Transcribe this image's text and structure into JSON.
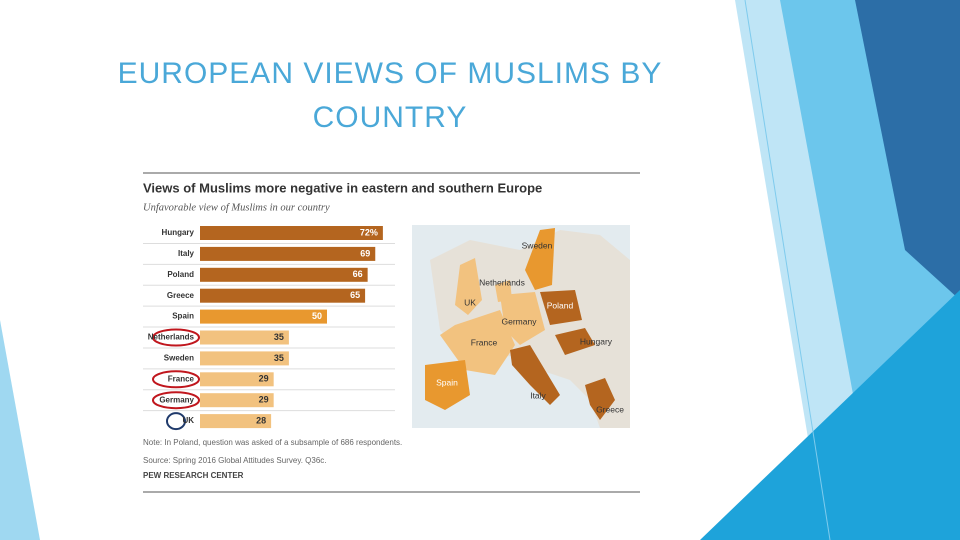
{
  "slide_title": "EUROPEAN VIEWS OF MUSLIMS BY COUNTRY",
  "chart_data": {
    "type": "bar",
    "orientation": "horizontal",
    "title": "Views of Muslims more negative in eastern and southern Europe",
    "subtitle": "Unfavorable view of Muslims in our country",
    "categories": [
      "Hungary",
      "Italy",
      "Poland",
      "Greece",
      "Spain",
      "Netherlands",
      "Sweden",
      "France",
      "Germany",
      "UK"
    ],
    "values": [
      72,
      69,
      66,
      65,
      50,
      35,
      35,
      29,
      29,
      28
    ],
    "value_labels": [
      "72%",
      "69",
      "66",
      "65",
      "50",
      "35",
      "35",
      "29",
      "29",
      "28"
    ],
    "colors": [
      "#b4651f",
      "#b4651f",
      "#b4651f",
      "#b4651f",
      "#e8982f",
      "#f2c27f",
      "#f2c27f",
      "#f2c27f",
      "#f2c27f",
      "#f2c27f"
    ],
    "highlight_colors": [
      null,
      null,
      null,
      null,
      null,
      "#c0161d",
      null,
      "#c0161d",
      "#c0161d",
      "#1f3a6b"
    ],
    "note": "Note: In Poland, question was asked of a subsample of 686 respondents.",
    "source": "Source: Spring 2016 Global Attitudes Survey. Q36c.",
    "credit": "PEW RESEARCH CENTER"
  },
  "map": {
    "labels": [
      "Sweden",
      "Netherlands",
      "UK",
      "Poland",
      "Germany",
      "France",
      "Hungary",
      "Spain",
      "Italy",
      "Greece"
    ]
  }
}
